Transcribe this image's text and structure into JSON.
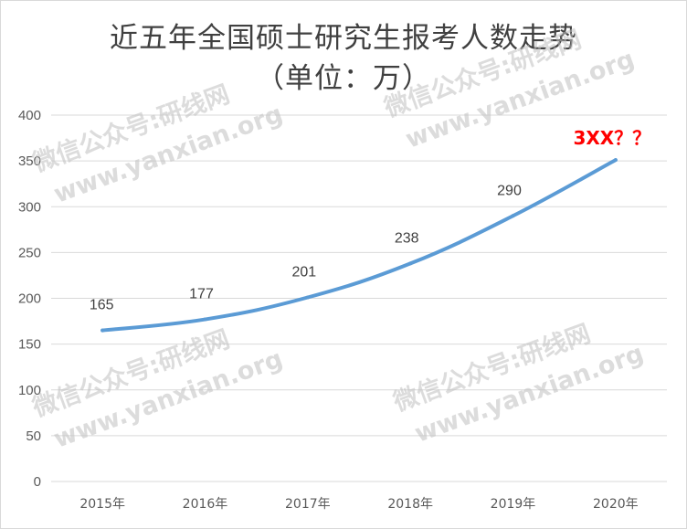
{
  "colors": {
    "line": "#5b9bd5",
    "annotation": "#ff0000",
    "grid": "#d9d9d9",
    "text": "#595959"
  },
  "chart_data": {
    "type": "line",
    "title": "近五年全国硕士研究生报考人数走势",
    "subtitle": "（单位：万）",
    "categories": [
      "2015年",
      "2016年",
      "2017年",
      "2018年",
      "2019年",
      "2020年"
    ],
    "series": [
      {
        "values": [
          165,
          177,
          201,
          238,
          290,
          351
        ]
      }
    ],
    "data_labels": [
      "165",
      "177",
      "201",
      "238",
      "290",
      "3XX？？"
    ],
    "ylim": [
      0,
      400
    ],
    "yticks": [
      0,
      50,
      100,
      150,
      200,
      250,
      300,
      350,
      400
    ],
    "grid": true,
    "legend": "none",
    "xlabel": "",
    "ylabel": ""
  },
  "watermark": [
    "微信公众号:研线网",
    "www.yanxian.org"
  ]
}
